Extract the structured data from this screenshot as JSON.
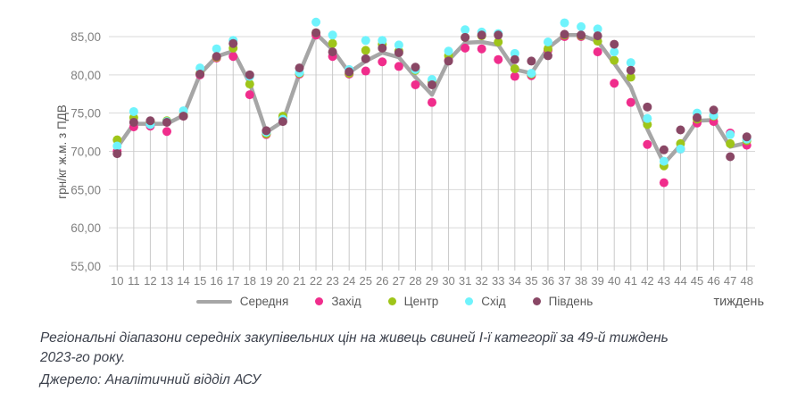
{
  "chart_data": {
    "type": "line",
    "title": "",
    "xlabel": "тиждень",
    "ylabel": "грн/кг ж.м. з ПДВ",
    "ylim": [
      55,
      85
    ],
    "ytick_step": 5,
    "decimal_separator": ",",
    "grid": true,
    "legend_position": "bottom",
    "x": [
      10,
      11,
      12,
      13,
      14,
      15,
      16,
      17,
      18,
      19,
      20,
      21,
      22,
      23,
      24,
      25,
      26,
      27,
      28,
      29,
      30,
      31,
      32,
      33,
      34,
      35,
      36,
      37,
      38,
      39,
      40,
      41,
      42,
      43,
      44,
      45,
      46,
      47,
      48
    ],
    "series": [
      {
        "key": "serednia",
        "name": "Середня",
        "type": "line",
        "color": "#A6A6A6",
        "values": [
          70.5,
          73.6,
          73.6,
          73.6,
          74.7,
          80.1,
          82.4,
          83.1,
          78.9,
          72.5,
          73.9,
          80.2,
          85.4,
          83.3,
          80.3,
          81.8,
          82.9,
          82.3,
          79.7,
          77.4,
          81.9,
          84.2,
          84.3,
          83.9,
          80.7,
          80.2,
          83.5,
          85.2,
          85.2,
          84.4,
          81.5,
          78.4,
          72.9,
          68.4,
          70.8,
          74.0,
          74.1,
          70.6,
          71.1
        ]
      },
      {
        "key": "zakhid",
        "name": "Захід",
        "type": "scatter",
        "color": "#F02D8C",
        "values": [
          70.0,
          73.2,
          73.3,
          72.6,
          74.6,
          80.0,
          82.2,
          82.4,
          77.4,
          72.2,
          74.4,
          80.1,
          85.2,
          82.4,
          80.1,
          80.5,
          81.7,
          81.1,
          78.7,
          76.4,
          81.9,
          83.5,
          83.4,
          82.0,
          79.8,
          79.9,
          83.2,
          85.0,
          85.0,
          83.0,
          78.9,
          76.4,
          70.9,
          65.9,
          70.3,
          73.7,
          73.9,
          72.4,
          70.8
        ]
      },
      {
        "key": "tsentr",
        "name": "Центр",
        "type": "scatter",
        "color": "#9FC519",
        "values": [
          71.5,
          74.4,
          73.9,
          74.0,
          74.7,
          80.2,
          82.3,
          83.5,
          78.8,
          72.3,
          74.6,
          80.2,
          85.5,
          84.1,
          80.2,
          83.2,
          84.0,
          83.1,
          80.6,
          79.1,
          82.5,
          84.9,
          85.1,
          84.3,
          80.8,
          80.1,
          83.4,
          85.2,
          85.1,
          84.4,
          81.9,
          79.7,
          73.5,
          68.1,
          71.0,
          74.2,
          74.6,
          71.0,
          71.4
        ]
      },
      {
        "key": "skhid",
        "name": "Схід",
        "type": "scatter",
        "color": "#6FF3FC",
        "values": [
          70.7,
          75.2,
          73.5,
          73.9,
          75.3,
          80.9,
          83.4,
          84.5,
          79.8,
          72.5,
          74.2,
          80.3,
          86.9,
          85.2,
          80.7,
          84.5,
          84.5,
          83.9,
          80.7,
          79.4,
          83.1,
          85.9,
          85.6,
          85.4,
          82.8,
          80.2,
          84.3,
          86.8,
          86.3,
          86.0,
          83.0,
          81.6,
          74.3,
          68.7,
          70.3,
          75.0,
          74.7,
          72.2,
          71.6
        ]
      },
      {
        "key": "pivden",
        "name": "Південь",
        "type": "scatter",
        "color": "#894765",
        "values": [
          69.7,
          73.8,
          74.0,
          73.8,
          74.6,
          80.1,
          82.4,
          84.1,
          80.0,
          72.7,
          73.9,
          80.9,
          85.5,
          83.0,
          80.4,
          82.1,
          83.5,
          82.9,
          81.0,
          78.7,
          81.8,
          84.9,
          85.2,
          85.2,
          82.0,
          81.8,
          82.5,
          85.3,
          85.2,
          85.1,
          84.0,
          80.6,
          75.8,
          70.2,
          72.8,
          74.4,
          75.4,
          69.3,
          71.9
        ]
      }
    ],
    "colors": {
      "gridline": "#D9D9D9",
      "dropline": "#C9C9C9",
      "tick_text": "#808080",
      "axis_title_text": "#595959"
    }
  },
  "caption": {
    "line1": "Регіональні діапазони середніх закупівельних цін на живець свиней І-ї категорії за 49-й тиждень",
    "line2": "2023-го року.",
    "source": "Джерело: Аналітичний відділ АСУ"
  }
}
